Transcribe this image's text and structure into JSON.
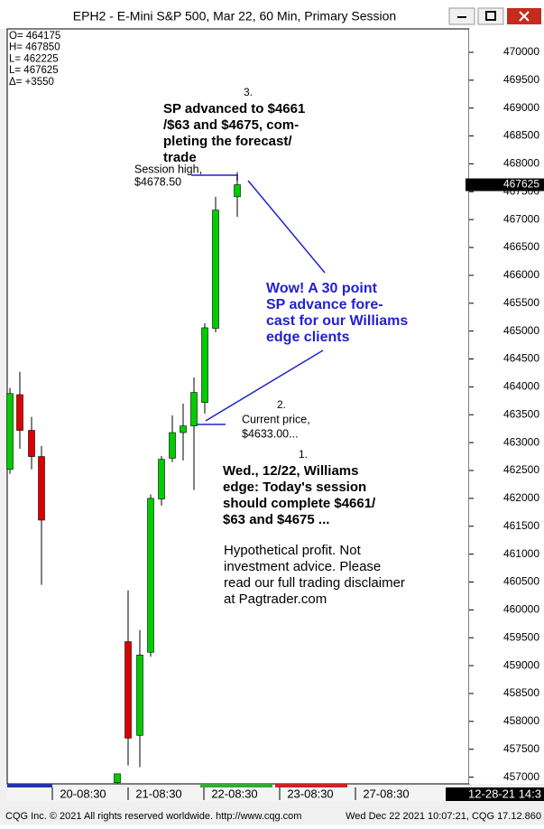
{
  "chart_data": {
    "type": "candlestick",
    "title": "EPH2 - E-Mini S&P 500, Mar 22, 60 Min, Primary Session",
    "categories": [
      null,
      null,
      null,
      null,
      null,
      null,
      null,
      null,
      null,
      null,
      null,
      null,
      null,
      null,
      null
    ],
    "series": [
      {
        "open": [
          462520,
          463860,
          463220,
          462750,
          456900,
          459430,
          457750,
          459240,
          461990,
          462720,
          463180,
          463300,
          463720,
          465050,
          467410
        ],
        "high": [
          463980,
          464270,
          463460,
          462940,
          457060,
          460350,
          459640,
          462070,
          462760,
          463490,
          463700,
          464170,
          465140,
          467410,
          467850
        ],
        "low": [
          462440,
          462890,
          462520,
          460450,
          456890,
          457210,
          457180,
          459160,
          461870,
          462650,
          462680,
          462150,
          463520,
          464980,
          467050
        ],
        "close": [
          463880,
          463220,
          462750,
          461610,
          457060,
          457700,
          459190,
          462000,
          462700,
          463180,
          463300,
          463900,
          465060,
          467170,
          467625
        ]
      }
    ],
    "up_color": "#00cc00",
    "down_color": "#dd0000",
    "ylim": [
      456880,
      470420
    ],
    "yticks": [
      457000,
      457500,
      458000,
      458500,
      459000,
      459500,
      460000,
      460500,
      461000,
      461500,
      462000,
      462500,
      463000,
      463500,
      464000,
      464500,
      465000,
      465500,
      466000,
      466500,
      467000,
      467500,
      468000,
      468500,
      469000,
      469500,
      470000
    ],
    "last_price": 467625,
    "x_axis_labels": [
      "20-08:30",
      "21-08:30",
      "22-08:30",
      "23-08:30",
      "27-08:30",
      "12-28-21 14:3"
    ],
    "ohlc_box": [
      "O= 464175",
      "H= 467850",
      "L= 462225",
      "L= 467625",
      "Δ=  +3550"
    ],
    "annotations": [
      {
        "lines": [
          "3.",
          "SP advanced to $4661",
          "/$63 and $4675, com-",
          "pleting the forecast/",
          "trade"
        ]
      },
      {
        "lines": [
          "Session high,",
          "$4678.50"
        ]
      },
      {
        "lines": [
          "Wow! A 30 point",
          "SP advance fore-",
          "cast for our Williams",
          "edge clients"
        ]
      },
      {
        "lines": [
          "2.",
          "Current price,",
          "$4633.00..."
        ]
      },
      {
        "lines": [
          "1.",
          "Wed., 12/22, Williams",
          "edge: Today's session",
          "should complete $4661/",
          "$63 and $4675 ..."
        ]
      },
      {
        "lines": [
          "Hypothetical profit. Not",
          "investment advice. Please",
          "read our full trading disclaimer",
          "at Pagtrader.com"
        ]
      }
    ],
    "footer_left": "CQG Inc. © 2021 All rights reserved worldwide. http://www.cqg.com",
    "footer_right": "Wed Dec 22 2021 10:07:21, CQG 17.12.860"
  }
}
